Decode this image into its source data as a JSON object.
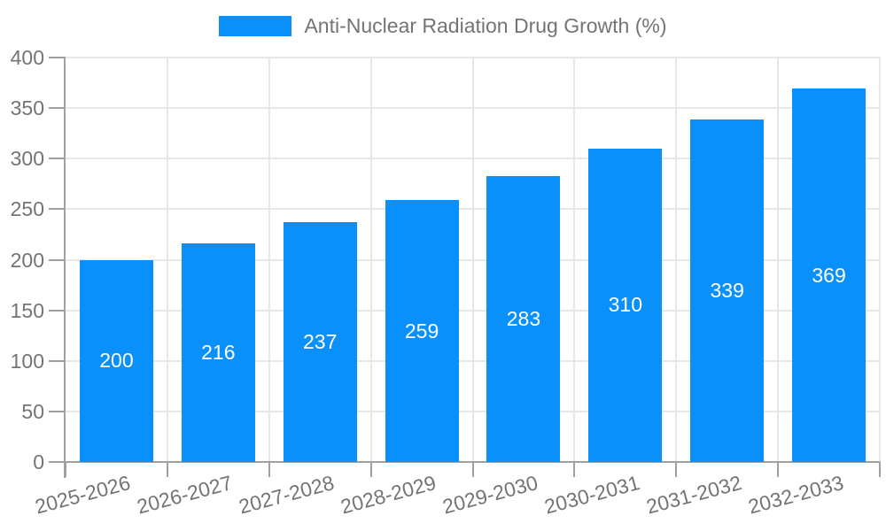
{
  "legend": {
    "label": "Anti-Nuclear Radiation Drug Growth (%)"
  },
  "chart_data": {
    "type": "bar",
    "title": "Anti-Nuclear Radiation Drug Growth (%)",
    "categories": [
      "2025-2026",
      "2026-2027",
      "2027-2028",
      "2028-2029",
      "2029-2030",
      "2030-2031",
      "2031-2032",
      "2032-2033"
    ],
    "values": [
      200,
      216,
      237,
      259,
      283,
      310,
      339,
      369
    ],
    "xlabel": "",
    "ylabel": "",
    "ylim": [
      0,
      400
    ],
    "ytick_step": 50,
    "yticks": [
      0,
      50,
      100,
      150,
      200,
      250,
      300,
      350,
      400
    ],
    "grid": true,
    "legend_position": "top-center",
    "value_labels": "inside-center",
    "x_label_rotation_deg": -15,
    "colors": {
      "bar": "#0a90fa",
      "bar_label": "#ffffff",
      "axis": "#a0a0a0",
      "grid": "#e7e7e7",
      "text": "#747474",
      "background": "#ffffff"
    }
  }
}
